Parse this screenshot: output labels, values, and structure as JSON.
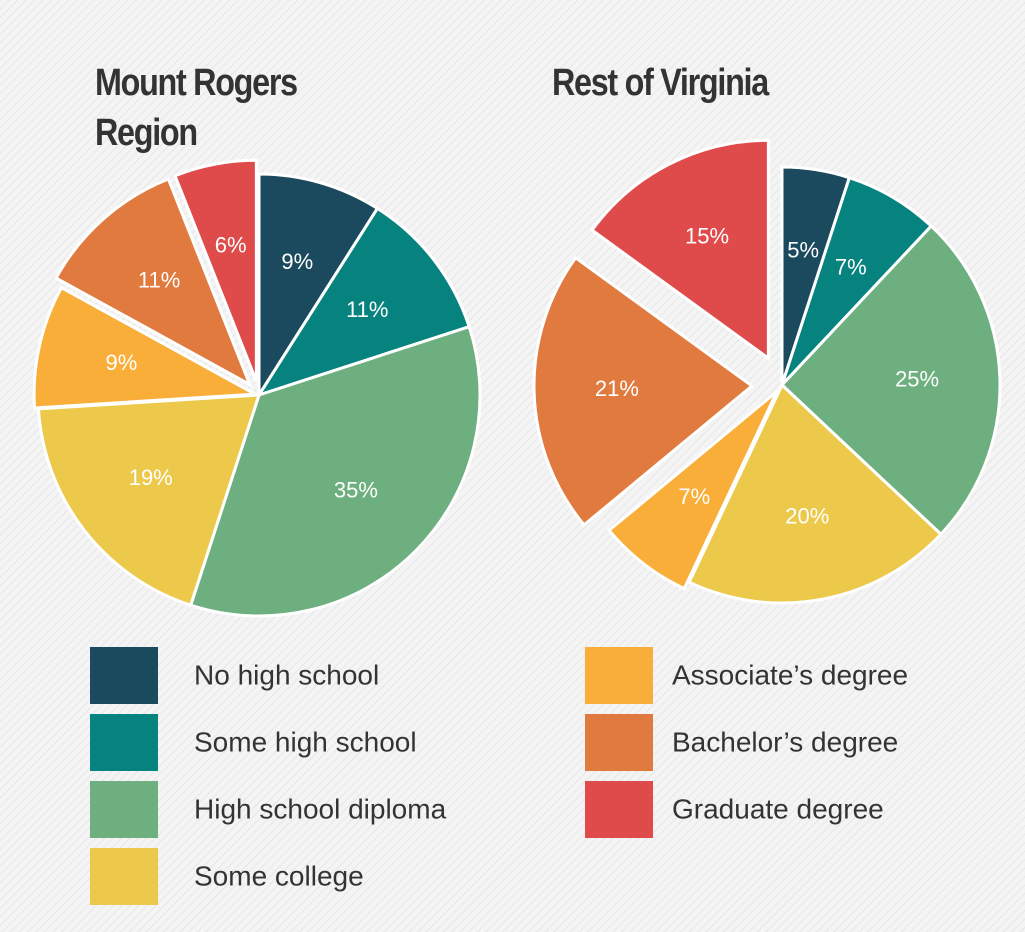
{
  "legend": {
    "categories": [
      "No high school",
      "Some high school",
      "High school diploma",
      "Some college",
      "Associate’s degree",
      "Bachelor’s degree",
      "Graduate degree"
    ],
    "colors": [
      "#1b4a5e",
      "#07837f",
      "#6daf7e",
      "#ecc94b",
      "#f8ae38",
      "#e07a3f",
      "#df4a4a"
    ]
  },
  "chart_data": [
    {
      "type": "pie",
      "title": "Mount Rogers Region",
      "values": [
        9,
        11,
        35,
        19,
        9,
        11,
        6
      ],
      "value_labels": [
        "9%",
        "11%",
        "35%",
        "19%",
        "9%",
        "11%",
        "6%"
      ]
    },
    {
      "type": "pie",
      "title": "Rest of Virginia",
      "values": [
        5,
        7,
        25,
        20,
        7,
        21,
        15
      ],
      "value_labels": [
        "5%",
        "7%",
        "25%",
        "20%",
        "7%",
        "21%",
        "15%"
      ]
    }
  ]
}
